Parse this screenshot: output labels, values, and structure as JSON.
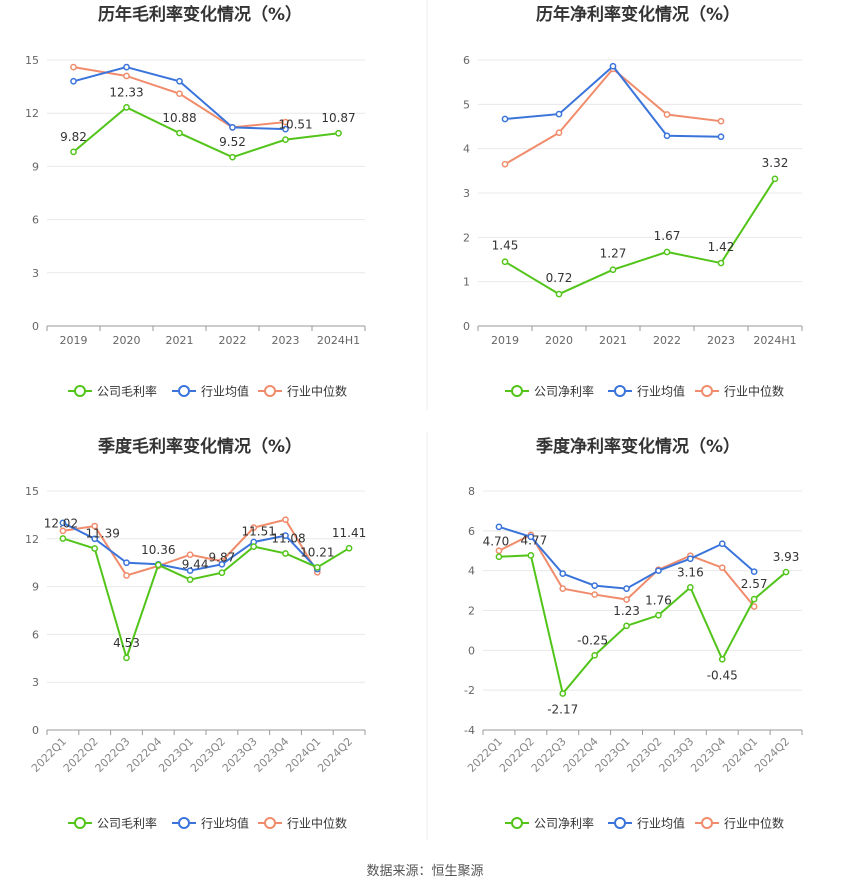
{
  "source": "数据来源：恒生聚源",
  "colors": {
    "company": "#52c41a",
    "avg": "#3a74db",
    "median": "#f08c6c"
  },
  "chart_data": [
    {
      "type": "line",
      "title": "历年毛利率变化情况（%）",
      "categories": [
        "2019",
        "2020",
        "2021",
        "2022",
        "2023",
        "2024H1"
      ],
      "ylim": [
        0,
        15
      ],
      "yticks": [
        0,
        3,
        6,
        9,
        12,
        15
      ],
      "grid": true,
      "legend": "bottom",
      "series": [
        {
          "name": "公司毛利率",
          "values": [
            9.82,
            12.33,
            10.88,
            9.52,
            10.51,
            10.87
          ],
          "labels": [
            "9.82",
            "12.33",
            "10.88",
            "9.52",
            "10.51",
            "10.87"
          ]
        },
        {
          "name": "行业均值",
          "values": [
            13.8,
            14.6,
            13.8,
            11.2,
            11.1,
            null
          ]
        },
        {
          "name": "行业中位数",
          "values": [
            14.6,
            14.1,
            13.1,
            11.2,
            11.5,
            null
          ]
        }
      ]
    },
    {
      "type": "line",
      "title": "历年净利率变化情况（%）",
      "categories": [
        "2019",
        "2020",
        "2021",
        "2022",
        "2023",
        "2024H1"
      ],
      "ylim": [
        0,
        6
      ],
      "yticks": [
        0,
        1,
        2,
        3,
        4,
        5,
        6
      ],
      "grid": true,
      "legend": "bottom",
      "series": [
        {
          "name": "公司净利率",
          "values": [
            1.45,
            0.72,
            1.27,
            1.67,
            1.42,
            3.32
          ],
          "labels": [
            "1.45",
            "0.72",
            "1.27",
            "1.67",
            "1.42",
            "3.32"
          ]
        },
        {
          "name": "行业均值",
          "values": [
            4.67,
            4.78,
            5.86,
            4.29,
            4.27,
            null
          ]
        },
        {
          "name": "行业中位数",
          "values": [
            3.65,
            4.36,
            5.8,
            4.77,
            4.62,
            null
          ]
        }
      ]
    },
    {
      "type": "line",
      "title": "季度毛利率变化情况（%）",
      "categories": [
        "2022Q1",
        "2022Q2",
        "2022Q3",
        "2022Q4",
        "2023Q1",
        "2023Q2",
        "2023Q3",
        "2023Q4",
        "2024Q1",
        "2024Q2"
      ],
      "ylim": [
        0,
        15
      ],
      "yticks": [
        0,
        3,
        6,
        9,
        12,
        15
      ],
      "grid": true,
      "legend": "bottom",
      "series": [
        {
          "name": "公司毛利率",
          "values": [
            12.02,
            11.39,
            4.53,
            10.36,
            9.44,
            9.87,
            11.51,
            11.08,
            10.21,
            11.41
          ],
          "labels": [
            "12.02",
            "11.39",
            "4.53",
            "10.36",
            "9.44",
            "9.87",
            "11.51",
            "11.08",
            "10.21",
            "11.41"
          ]
        },
        {
          "name": "行业均值",
          "values": [
            13.0,
            12.0,
            10.5,
            10.4,
            10.0,
            10.4,
            11.8,
            12.2,
            10.1,
            null
          ]
        },
        {
          "name": "行业中位数",
          "values": [
            12.5,
            12.8,
            9.7,
            10.3,
            11.0,
            10.6,
            12.7,
            13.2,
            9.9,
            null
          ]
        }
      ]
    },
    {
      "type": "line",
      "title": "季度净利率变化情况（%）",
      "categories": [
        "2022Q1",
        "2022Q2",
        "2022Q3",
        "2022Q4",
        "2023Q1",
        "2023Q2",
        "2023Q3",
        "2023Q4",
        "2024Q1",
        "2024Q2"
      ],
      "ylim": [
        -4,
        8
      ],
      "yticks": [
        -4,
        -2,
        0,
        2,
        4,
        6,
        8
      ],
      "grid": true,
      "legend": "bottom",
      "series": [
        {
          "name": "公司净利率",
          "values": [
            4.7,
            4.77,
            -2.17,
            -0.25,
            1.23,
            1.76,
            3.16,
            -0.45,
            2.57,
            3.93
          ],
          "labels": [
            "4.70",
            "4.77",
            "-2.17",
            "-0.25",
            "1.23",
            "1.76",
            "3.16",
            "-0.45",
            "2.57",
            "3.93"
          ]
        },
        {
          "name": "行业均值",
          "values": [
            6.2,
            5.7,
            3.85,
            3.25,
            3.1,
            4.0,
            4.6,
            5.35,
            3.95,
            null
          ]
        },
        {
          "name": "行业中位数",
          "values": [
            5.0,
            5.8,
            3.1,
            2.8,
            2.55,
            4.05,
            4.75,
            4.15,
            2.2,
            null
          ]
        }
      ]
    }
  ]
}
